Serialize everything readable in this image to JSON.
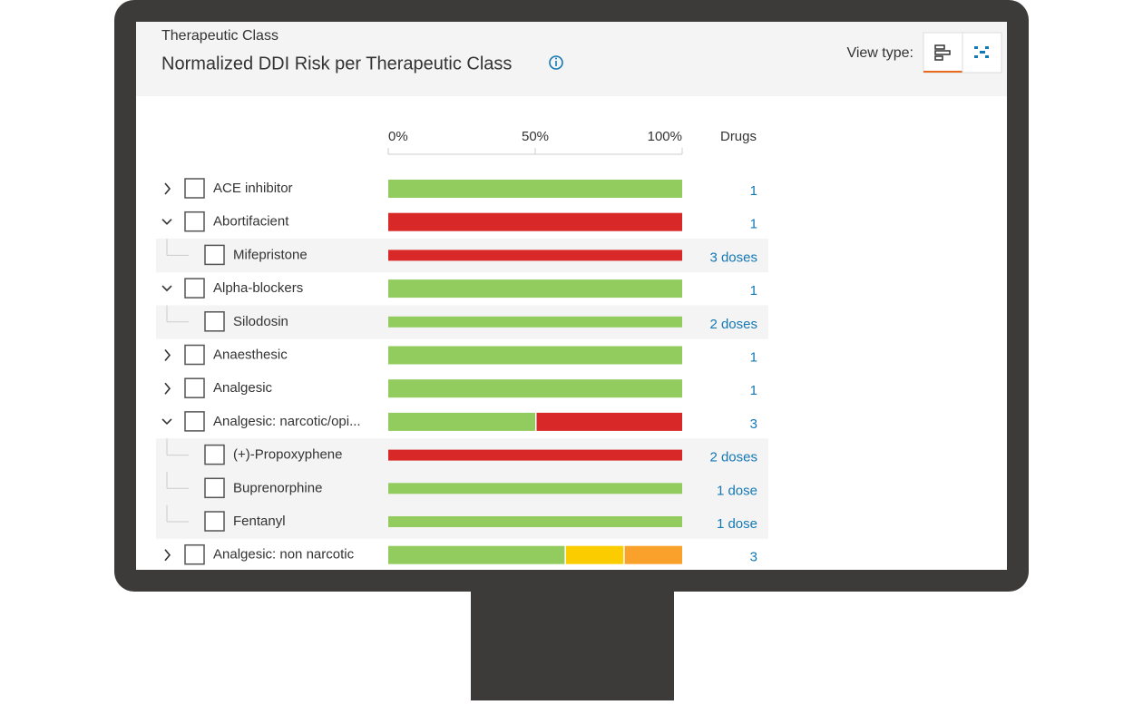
{
  "header": {
    "subtitle": "Therapeutic Class",
    "title": "Normalized DDI Risk per Therapeutic Class",
    "view_type_label": "View type:"
  },
  "axis": {
    "lim": [
      0,
      100
    ],
    "ticks": [
      {
        "value": 0,
        "label": "0%"
      },
      {
        "value": 50,
        "label": "50%"
      },
      {
        "value": 100,
        "label": "100%"
      }
    ]
  },
  "drugs_header": "Drugs",
  "rows": [
    {
      "label": "ACE inhibitor",
      "level": 0,
      "expand": "collapsed",
      "segments": [
        {
          "color": "#92cc5e",
          "value": 100
        }
      ],
      "drugs": "1"
    },
    {
      "label": "Abortifacient",
      "level": 0,
      "expand": "expanded",
      "segments": [
        {
          "color": "#d92828",
          "value": 100
        }
      ],
      "drugs": "1"
    },
    {
      "label": "Mifepristone",
      "level": 1,
      "segments": [
        {
          "color": "#d92828",
          "value": 100
        }
      ],
      "drugs": "3 doses"
    },
    {
      "label": "Alpha-blockers",
      "level": 0,
      "expand": "expanded",
      "segments": [
        {
          "color": "#92cc5e",
          "value": 100
        }
      ],
      "drugs": "1"
    },
    {
      "label": "Silodosin",
      "level": 1,
      "segments": [
        {
          "color": "#92cc5e",
          "value": 100
        }
      ],
      "drugs": "2 doses"
    },
    {
      "label": "Anaesthesic",
      "level": 0,
      "expand": "collapsed",
      "segments": [
        {
          "color": "#92cc5e",
          "value": 100
        }
      ],
      "drugs": "1"
    },
    {
      "label": "Analgesic",
      "level": 0,
      "expand": "collapsed",
      "segments": [
        {
          "color": "#92cc5e",
          "value": 100
        }
      ],
      "drugs": "1"
    },
    {
      "label": "Analgesic: narcotic/opi...",
      "level": 0,
      "expand": "expanded",
      "segments": [
        {
          "color": "#92cc5e",
          "value": 50
        },
        {
          "color": "#d92828",
          "value": 50
        }
      ],
      "drugs": "3"
    },
    {
      "label": "(+)-Propoxyphene",
      "level": 1,
      "segments": [
        {
          "color": "#d92828",
          "value": 100
        }
      ],
      "drugs": "2 doses"
    },
    {
      "label": "Buprenorphine",
      "level": 1,
      "segments": [
        {
          "color": "#92cc5e",
          "value": 100
        }
      ],
      "drugs": "1 dose"
    },
    {
      "label": "Fentanyl",
      "level": 1,
      "segments": [
        {
          "color": "#92cc5e",
          "value": 100
        }
      ],
      "drugs": "1 dose"
    },
    {
      "label": "Analgesic: non narcotic",
      "level": 0,
      "expand": "collapsed",
      "segments": [
        {
          "color": "#92cc5e",
          "value": 60
        },
        {
          "color": "#fbcd00",
          "value": 20
        },
        {
          "color": "#f9a12b",
          "value": 20
        }
      ],
      "drugs": "3"
    }
  ]
}
